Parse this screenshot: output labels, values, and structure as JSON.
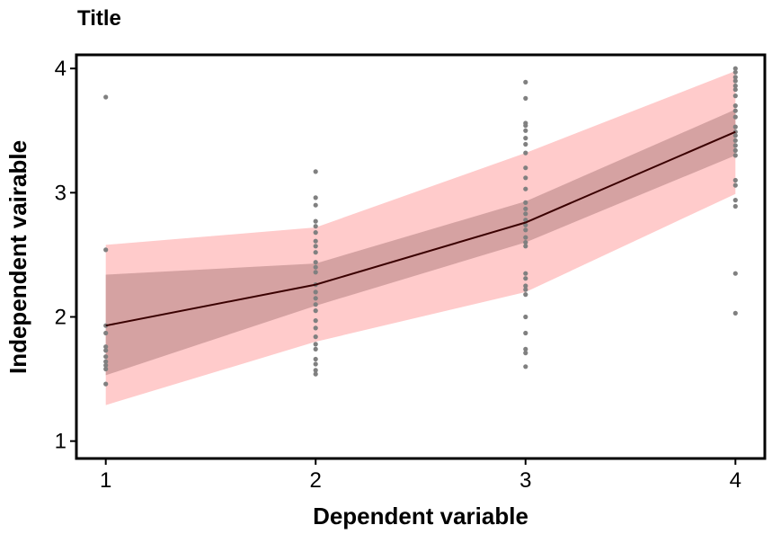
{
  "chart_data": {
    "type": "line",
    "title": "Title",
    "xlabel": "Dependent variable",
    "ylabel": "Independent vairable",
    "xlim": [
      0.86,
      4.14
    ],
    "ylim": [
      0.86,
      4.11
    ],
    "x_ticks": [
      1,
      2,
      3,
      4
    ],
    "y_ticks": [
      1,
      2,
      3,
      4
    ],
    "grid": false,
    "legend": "none",
    "series": [
      {
        "x": [
          1,
          2,
          3,
          4
        ],
        "y": [
          1.93,
          2.26,
          2.76,
          3.49
        ],
        "ci_inner_lower": [
          1.53,
          2.09,
          2.6,
          3.3
        ],
        "ci_inner_upper": [
          2.34,
          2.43,
          2.93,
          3.67
        ],
        "ci_outer_lower": [
          1.29,
          1.8,
          2.2,
          2.99
        ],
        "ci_outer_upper": [
          2.58,
          2.72,
          3.32,
          3.98
        ]
      }
    ],
    "points": [
      {
        "x": 1,
        "y": [
          3.77,
          2.54,
          1.93,
          1.87,
          1.76,
          1.73,
          1.68,
          1.64,
          1.61,
          1.58,
          1.46
        ]
      },
      {
        "x": 2,
        "y": [
          3.17,
          2.96,
          2.9,
          2.77,
          2.73,
          2.68,
          2.61,
          2.57,
          2.52,
          2.44,
          2.4,
          2.36,
          2.26,
          2.2,
          2.15,
          2.1,
          2.05,
          1.97,
          1.91,
          1.84,
          1.78,
          1.74,
          1.66,
          1.62,
          1.57,
          1.54
        ]
      },
      {
        "x": 3,
        "y": [
          3.89,
          3.76,
          3.56,
          3.54,
          3.5,
          3.44,
          3.39,
          3.32,
          3.2,
          3.12,
          3.03,
          2.92,
          2.87,
          2.83,
          2.78,
          2.74,
          2.7,
          2.64,
          2.6,
          2.57,
          2.35,
          2.31,
          2.25,
          2.22,
          2.18,
          2.0,
          1.87,
          1.74,
          1.71,
          1.6
        ]
      },
      {
        "x": 4,
        "y": [
          4.0,
          3.97,
          3.93,
          3.9,
          3.86,
          3.83,
          3.78,
          3.7,
          3.66,
          3.61,
          3.53,
          3.49,
          3.46,
          3.42,
          3.38,
          3.34,
          3.3,
          3.1,
          3.06,
          2.94,
          2.89,
          2.35,
          2.03
        ]
      }
    ],
    "colors": {
      "outer_band": "#ffcbcb",
      "inner_band": "#d5a2a2",
      "line": "#3a0000",
      "points": "#808080"
    }
  }
}
